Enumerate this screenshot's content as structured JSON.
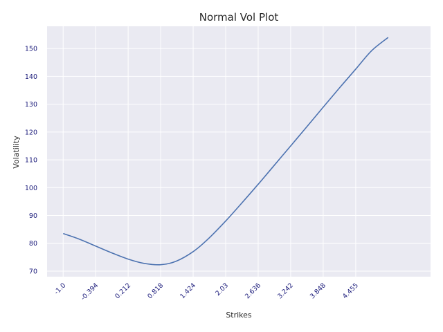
{
  "chart_data": {
    "type": "line",
    "title": "Normal Vol Plot",
    "xlabel": "Strikes",
    "ylabel": "Volatility",
    "xlim": [
      -1.3,
      5.85
    ],
    "ylim": [
      68,
      158
    ],
    "x_ticks": [
      -1.0,
      -0.394,
      0.212,
      0.818,
      1.424,
      2.03,
      2.636,
      3.242,
      3.848,
      4.455
    ],
    "x_tick_labels": [
      "-1.0",
      "-0.394",
      "0.212",
      "0.818",
      "1.424",
      "2.03",
      "2.636",
      "3.242",
      "3.848",
      "4.455"
    ],
    "y_ticks": [
      70,
      80,
      90,
      100,
      110,
      120,
      130,
      140,
      150
    ],
    "y_tick_labels": [
      "70",
      "80",
      "90",
      "100",
      "110",
      "120",
      "130",
      "140",
      "150"
    ],
    "grid": true,
    "colors": {
      "background": "#eaeaf2",
      "grid": "#ffffff",
      "line": "#4c72b0"
    },
    "series": [
      {
        "x": [
          -1.0,
          -0.7,
          -0.394,
          -0.1,
          0.212,
          0.5,
          0.818,
          1.1,
          1.424,
          1.7,
          2.03,
          2.3,
          2.636,
          2.9,
          3.242,
          3.5,
          3.848,
          4.15,
          4.455,
          4.75,
          5.06
        ],
        "values": [
          83.5,
          81.5,
          79.0,
          76.6,
          74.3,
          72.8,
          72.3,
          73.5,
          77.0,
          81.5,
          88.0,
          93.8,
          101.2,
          107.2,
          115.0,
          120.9,
          128.9,
          135.8,
          142.6,
          149.2,
          154.0
        ]
      }
    ]
  }
}
